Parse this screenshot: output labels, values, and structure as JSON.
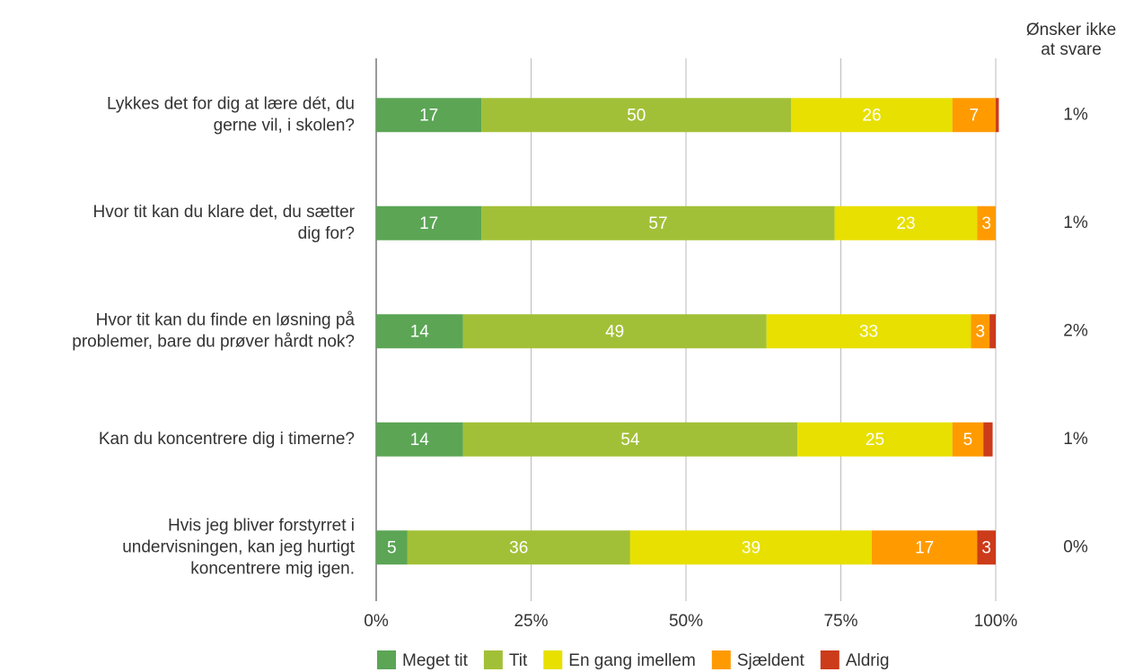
{
  "chart_data": {
    "type": "stacked_hbar",
    "categories": [
      [
        "Lykkes det for dig at lære dét, du",
        "gerne vil, i skolen?"
      ],
      [
        "Hvor tit kan du klare det, du sætter",
        "dig for?"
      ],
      [
        "Hvor tit kan du finde en løsning på",
        "problemer, bare du prøver hårdt nok?"
      ],
      [
        "Kan du koncentrere dig i timerne?"
      ],
      [
        "Hvis jeg bliver forstyrret i",
        "undervisningen, kan jeg hurtigt",
        "koncentrere mig igen."
      ]
    ],
    "series": [
      {
        "name": "Meget tit",
        "color": "#5ba555",
        "values": [
          17,
          17,
          14,
          14,
          5
        ]
      },
      {
        "name": "Tit",
        "color": "#a2c037",
        "values": [
          50,
          57,
          49,
          54,
          36
        ]
      },
      {
        "name": "En gang imellem",
        "color": "#e8e000",
        "values": [
          26,
          23,
          33,
          25,
          39
        ]
      },
      {
        "name": "Sjældent",
        "color": "#ff9b00",
        "values": [
          7,
          3,
          3,
          5,
          17
        ]
      },
      {
        "name": "Aldrig",
        "color": "#cc3b1a",
        "values": [
          0.5,
          0,
          1,
          1.5,
          3
        ]
      }
    ],
    "xlim": [
      0,
      100
    ],
    "xticks": [
      {
        "value": 0,
        "label": "0%"
      },
      {
        "value": 25,
        "label": "25%"
      },
      {
        "value": 50,
        "label": "50%"
      },
      {
        "value": 75,
        "label": "75%"
      },
      {
        "value": 100,
        "label": "100%"
      }
    ],
    "grid": true,
    "legend": "bottom",
    "side_column": {
      "title": [
        "Ønsker ikke",
        "at svare"
      ],
      "values": [
        1,
        1,
        2,
        1,
        0
      ],
      "value_labels": [
        "1%",
        "1%",
        "2%",
        "1%",
        "0%"
      ]
    }
  }
}
